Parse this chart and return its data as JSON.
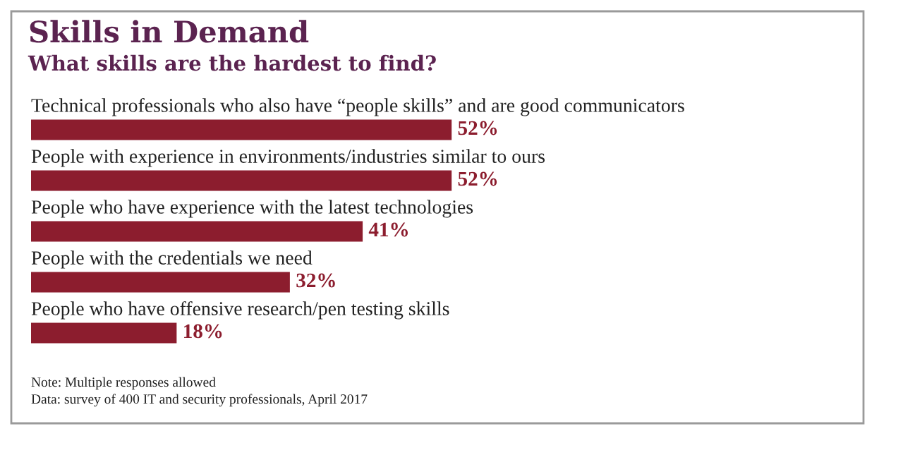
{
  "chart_data": {
    "type": "bar",
    "orientation": "horizontal",
    "title": "Skills in Demand",
    "subtitle": "What skills are the hardest to find?",
    "categories": [
      "Technical professionals who also have “people skills” and are good communicators",
      "People with experience in environments/industries similar to ours",
      "People who have experience with the latest technologies",
      "People with the credentials we need",
      "People who have offensive research/pen testing skills"
    ],
    "values": [
      52,
      52,
      41,
      32,
      18
    ],
    "value_labels": [
      "52%",
      "52%",
      "41%",
      "32%",
      "18%"
    ],
    "color": "#8c1d2e",
    "tick_labels": false,
    "annotations": [
      "Note: Multiple responses allowed",
      "Data: survey of 400 IT and security professionals, April 2017"
    ]
  }
}
